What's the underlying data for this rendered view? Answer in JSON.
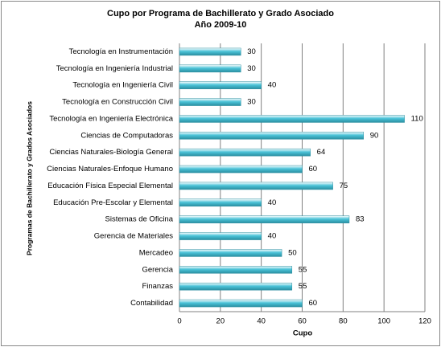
{
  "chart_data": {
    "type": "bar",
    "orientation": "horizontal",
    "title": "Cupo por Programa de Bachillerato y Grado Asociado",
    "subtitle": "Año 2009-10",
    "x_label": "Cupo",
    "y_label": "Programas de Bachillerato y Grados Asociados",
    "categories": [
      "Tecnología en Instrumentación",
      "Tecnología en Ingeniería Industrial",
      "Tecnología en Ingeniería Civil",
      "Tecnología en Construcción Civil",
      "Tecnología en Ingeniería Electrónica",
      "Ciencias de Computadoras",
      "Ciencias Naturales-Biología General",
      "Ciencias Naturales-Enfoque Humano",
      "Educación Física Especial Elemental",
      "Educación Pre-Escolar y Elemental",
      "Sistemas de Oficina",
      "Gerencia de Materiales",
      "Mercadeo",
      "Gerencia",
      "Finanzas",
      "Contabilidad"
    ],
    "values": [
      30,
      30,
      40,
      30,
      110,
      90,
      64,
      60,
      75,
      40,
      83,
      40,
      50,
      55,
      55,
      60
    ],
    "color": "#4bc3d8",
    "xlim": [
      0,
      120
    ],
    "xticks": [
      0,
      20,
      40,
      60,
      80,
      100,
      120
    ],
    "grid": true
  }
}
